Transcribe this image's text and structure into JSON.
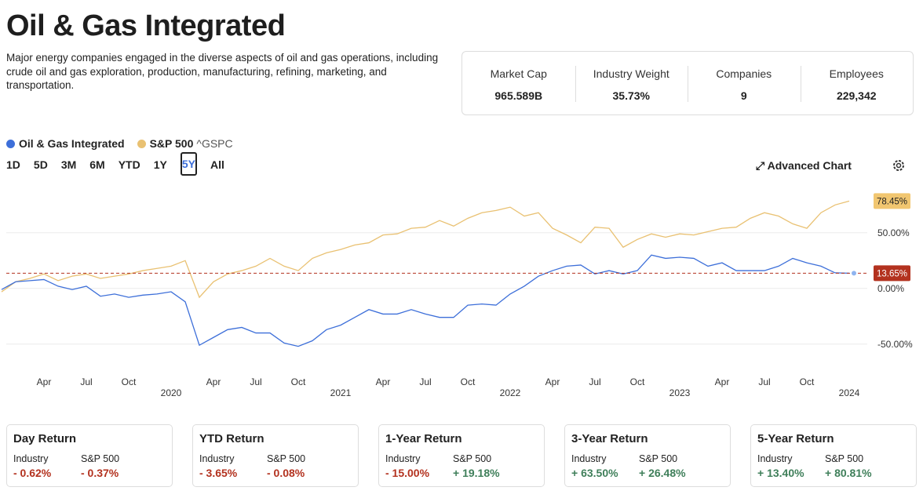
{
  "header": {
    "title": "Oil & Gas Integrated",
    "description": "Major energy companies engaged in the diverse aspects of oil and gas operations, including crude oil and gas exploration, production, manufacturing, refining, marketing, and transportation."
  },
  "stats": [
    {
      "label": "Market Cap",
      "value": "965.589B"
    },
    {
      "label": "Industry Weight",
      "value": "35.73%"
    },
    {
      "label": "Companies",
      "value": "9"
    },
    {
      "label": "Employees",
      "value": "229,342"
    }
  ],
  "ranges": [
    "1D",
    "5D",
    "3M",
    "6M",
    "YTD",
    "1Y",
    "5Y",
    "All"
  ],
  "selected_range": "5Y",
  "advanced_chart": "Advanced Chart",
  "chart_data": {
    "type": "line",
    "x": [
      "2019-01",
      "2019-02",
      "2019-03",
      "2019-04",
      "2019-05",
      "2019-06",
      "2019-07",
      "2019-08",
      "2019-09",
      "2019-10",
      "2019-11",
      "2019-12",
      "2020-01",
      "2020-02",
      "2020-03",
      "2020-04",
      "2020-05",
      "2020-06",
      "2020-07",
      "2020-08",
      "2020-09",
      "2020-10",
      "2020-11",
      "2020-12",
      "2021-01",
      "2021-02",
      "2021-03",
      "2021-04",
      "2021-05",
      "2021-06",
      "2021-07",
      "2021-08",
      "2021-09",
      "2021-10",
      "2021-11",
      "2021-12",
      "2022-01",
      "2022-02",
      "2022-03",
      "2022-04",
      "2022-05",
      "2022-06",
      "2022-07",
      "2022-08",
      "2022-09",
      "2022-10",
      "2022-11",
      "2022-12",
      "2023-01",
      "2023-02",
      "2023-03",
      "2023-04",
      "2023-05",
      "2023-06",
      "2023-07",
      "2023-08",
      "2023-09",
      "2023-10",
      "2023-11",
      "2023-12",
      "2024-01"
    ],
    "series": [
      {
        "name": "Oil & Gas Integrated",
        "color": "#3d6fd9",
        "label_color": "#b3321f",
        "label_text_color": "#ffffff",
        "values": [
          -1,
          6,
          7,
          8,
          2,
          -1,
          2,
          -7,
          -5,
          -8,
          -6,
          -5,
          -3,
          -12,
          -51,
          -44,
          -37,
          -35,
          -40,
          -40,
          -49,
          -52,
          -47,
          -37,
          -33,
          -26,
          -19,
          -23,
          -23,
          -19,
          -23,
          -26,
          -26,
          -15,
          -14,
          -15,
          -5,
          2,
          11,
          16,
          20,
          21,
          13,
          16,
          13,
          16,
          30,
          27,
          28,
          27,
          20,
          23,
          16,
          16,
          16,
          20,
          27,
          23,
          20,
          14,
          13.65
        ],
        "end_label": "13.65%"
      },
      {
        "name": "S&P 500",
        "symbol": "^GSPC",
        "color": "#e9c172",
        "label_color": "#f1c670",
        "label_text_color": "#222222",
        "values": [
          -3,
          6,
          9,
          13,
          7,
          11,
          13,
          9,
          11,
          13,
          16,
          18,
          20,
          25,
          -8,
          6,
          13,
          16,
          20,
          27,
          20,
          16,
          27,
          32,
          35,
          39,
          41,
          48,
          49,
          54,
          55,
          61,
          56,
          63,
          68,
          70,
          73,
          65,
          68,
          54,
          48,
          41,
          55,
          54,
          37,
          44,
          49,
          46,
          49,
          48,
          51,
          54,
          55,
          63,
          68,
          65,
          58,
          54,
          68,
          75,
          78.45
        ],
        "end_label": "78.45%"
      }
    ],
    "ylim": [
      -72,
      90
    ],
    "yticks": [
      {
        "value": 50,
        "label": "50.00%"
      },
      {
        "value": 0,
        "label": "0.00%"
      },
      {
        "value": -50,
        "label": "-50.00%"
      }
    ],
    "xticks": [
      {
        "value": "2019-04",
        "label": "Apr"
      },
      {
        "value": "2019-07",
        "label": "Jul"
      },
      {
        "value": "2019-10",
        "label": "Oct"
      },
      {
        "value": "2020-04",
        "label": "Apr"
      },
      {
        "value": "2020-07",
        "label": "Jul"
      },
      {
        "value": "2020-10",
        "label": "Oct"
      },
      {
        "value": "2021-04",
        "label": "Apr"
      },
      {
        "value": "2021-07",
        "label": "Jul"
      },
      {
        "value": "2021-10",
        "label": "Oct"
      },
      {
        "value": "2022-04",
        "label": "Apr"
      },
      {
        "value": "2022-07",
        "label": "Jul"
      },
      {
        "value": "2022-10",
        "label": "Oct"
      },
      {
        "value": "2023-04",
        "label": "Apr"
      },
      {
        "value": "2023-07",
        "label": "Jul"
      },
      {
        "value": "2023-10",
        "label": "Oct"
      }
    ],
    "year_ticks": [
      {
        "value": "2020-01",
        "label": "2020"
      },
      {
        "value": "2021-01",
        "label": "2021"
      },
      {
        "value": "2022-01",
        "label": "2022"
      },
      {
        "value": "2023-01",
        "label": "2023"
      },
      {
        "value": "2024-01",
        "label": "2024"
      }
    ],
    "grid": true
  },
  "returns": [
    {
      "title": "Day Return",
      "labels": [
        "Industry",
        "S&P 500"
      ],
      "values": [
        "- 0.62%",
        "- 0.37%"
      ]
    },
    {
      "title": "YTD Return",
      "labels": [
        "Industry",
        "S&P 500"
      ],
      "values": [
        "- 3.65%",
        "- 0.08%"
      ]
    },
    {
      "title": "1-Year Return",
      "labels": [
        "Industry",
        "S&P 500"
      ],
      "values": [
        "- 15.00%",
        "+ 19.18%"
      ]
    },
    {
      "title": "3-Year Return",
      "labels": [
        "Industry",
        "S&P 500"
      ],
      "values": [
        "+ 63.50%",
        "+ 26.48%"
      ]
    },
    {
      "title": "5-Year Return",
      "labels": [
        "Industry",
        "S&P 500"
      ],
      "values": [
        "+ 13.40%",
        "+ 80.81%"
      ]
    }
  ]
}
